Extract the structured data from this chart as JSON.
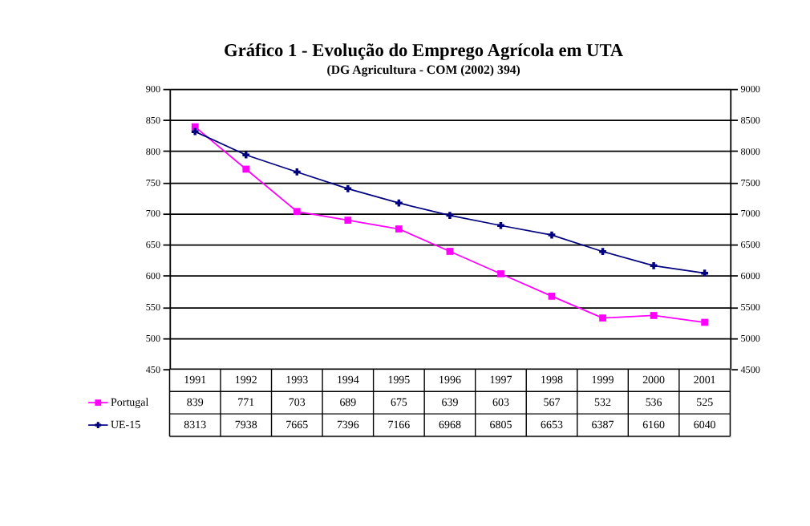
{
  "chart_data": {
    "type": "line",
    "title": "Gráfico 1 - Evolução do Emprego Agrícola em UTA",
    "subtitle": "(DG Agricultura - COM (2002) 394)",
    "categories": [
      "1991",
      "1992",
      "1993",
      "1994",
      "1995",
      "1996",
      "1997",
      "1998",
      "1999",
      "2000",
      "2001"
    ],
    "series": [
      {
        "name": "Portugal",
        "color": "#ff00ff",
        "marker": "square",
        "values": [
          839,
          771,
          703,
          689,
          675,
          639,
          603,
          567,
          532,
          536,
          525
        ]
      },
      {
        "name": "UE-15",
        "color": "#000080",
        "marker": "cross",
        "axis": "y2",
        "values": [
          8313,
          7938,
          7665,
          7396,
          7166,
          6968,
          6805,
          6653,
          6387,
          6160,
          6040
        ]
      }
    ],
    "ylim": [
      450,
      900
    ],
    "yticks": [
      450,
      500,
      550,
      600,
      650,
      700,
      750,
      800,
      850,
      900
    ],
    "y2lim": [
      4500,
      9000
    ],
    "y2ticks": [
      4500,
      5000,
      5500,
      6000,
      6500,
      7000,
      7500,
      8000,
      8500,
      9000
    ],
    "grid": "y",
    "legend": "bottom",
    "data_labels": true
  }
}
